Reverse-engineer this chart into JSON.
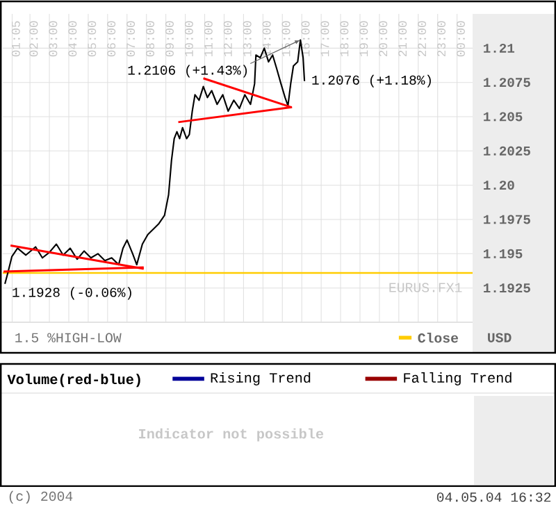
{
  "chart_data": [
    {
      "type": "line",
      "ylabel": "USD",
      "xlim": [
        0.6,
        24.8
      ],
      "ylim": [
        1.19,
        1.2125
      ],
      "xticks": [
        {
          "value": 1.083,
          "label": "01:05"
        },
        {
          "value": 2,
          "label": "02:00"
        },
        {
          "value": 3,
          "label": "03:00"
        },
        {
          "value": 4,
          "label": "04:00"
        },
        {
          "value": 5,
          "label": "05:00"
        },
        {
          "value": 6,
          "label": "06:00"
        },
        {
          "value": 7,
          "label": "07:00"
        },
        {
          "value": 8,
          "label": "08:00"
        },
        {
          "value": 9,
          "label": "09:00"
        },
        {
          "value": 10,
          "label": "10:00"
        },
        {
          "value": 11,
          "label": "11:00"
        },
        {
          "value": 12,
          "label": "12:00"
        },
        {
          "value": 13,
          "label": "13:00"
        },
        {
          "value": 14,
          "label": "14:00"
        },
        {
          "value": 15,
          "label": "15:00"
        },
        {
          "value": 16,
          "label": "16:00"
        },
        {
          "value": 17,
          "label": "17:00"
        },
        {
          "value": 18,
          "label": "18:00"
        },
        {
          "value": 19,
          "label": "19:00"
        },
        {
          "value": 20,
          "label": "20:00"
        },
        {
          "value": 21,
          "label": "21:00"
        },
        {
          "value": 22,
          "label": "22:00"
        },
        {
          "value": 23,
          "label": "23:00"
        },
        {
          "value": 24,
          "label": "00:00"
        }
      ],
      "yticks": [
        1.21,
        1.2075,
        1.205,
        1.2025,
        {
          "value": 1.2,
          "label": "1.20"
        },
        1.1975,
        1.195,
        1.1925
      ],
      "grid": true,
      "series": [
        {
          "color": "#000000",
          "x": [
            0.71,
            0.86,
            1.07,
            1.36,
            1.79,
            2.29,
            2.64,
            3.0,
            3.36,
            3.71,
            4.07,
            4.43,
            4.79,
            5.14,
            5.5,
            5.86,
            6.21,
            6.57,
            6.79,
            7.0,
            7.29,
            7.5,
            7.79,
            8.07,
            8.36,
            8.64,
            8.93,
            9.14,
            9.29,
            9.43,
            9.57,
            9.71,
            9.86,
            10.07,
            10.21,
            10.36,
            10.5,
            10.71,
            10.93,
            11.14,
            11.36,
            11.64,
            11.93,
            12.21,
            12.5,
            12.79,
            13.07,
            13.36,
            13.57,
            13.64,
            13.86,
            14.07,
            14.29,
            14.5,
            14.71,
            14.93,
            15.14,
            15.29,
            15.43,
            15.57,
            15.79,
            15.93,
            16.07,
            16.14
          ],
          "values": [
            1.1928,
            1.1936,
            1.1948,
            1.1954,
            1.1949,
            1.1955,
            1.1947,
            1.1951,
            1.1957,
            1.1949,
            1.1954,
            1.1946,
            1.1952,
            1.1947,
            1.195,
            1.1945,
            1.1947,
            1.1942,
            1.1954,
            1.196,
            1.195,
            1.1942,
            1.1957,
            1.1964,
            1.1968,
            1.1972,
            1.1978,
            1.1993,
            1.2018,
            1.2034,
            1.2039,
            1.2034,
            1.2042,
            1.2034,
            1.2037,
            1.2054,
            1.2066,
            1.2062,
            1.2072,
            1.2064,
            1.2069,
            1.2059,
            1.2066,
            1.2054,
            1.2062,
            1.2056,
            1.2066,
            1.2059,
            1.2074,
            1.2095,
            1.2093,
            1.21,
            1.209,
            1.2095,
            1.2085,
            1.2074,
            1.2064,
            1.2058,
            1.2074,
            1.2087,
            1.209,
            1.2106,
            1.2093,
            1.2076
          ]
        },
        {
          "color": "#ff0000",
          "x": [
            1.0,
            7.86
          ],
          "values": [
            1.1956,
            1.1939
          ]
        },
        {
          "color": "#ff0000",
          "x": [
            0.64,
            7.86
          ],
          "values": [
            1.1937,
            1.194
          ]
        },
        {
          "color": "#ff0000",
          "x": [
            10.93,
            15.43
          ],
          "values": [
            1.2078,
            1.2057
          ]
        },
        {
          "color": "#ff0000",
          "x": [
            9.64,
            15.5
          ],
          "values": [
            1.2046,
            1.2057
          ]
        }
      ],
      "ref_lines": [
        {
          "axis": "y",
          "value": 1.1936,
          "label": "Close",
          "color": "#ffcc00"
        }
      ],
      "annotations": [
        {
          "text": "1.2106 (+1.43%)",
          "x": 15.93,
          "y": 1.2106
        },
        {
          "text": "1.2076 (+1.18%)",
          "x": 16.14,
          "y": 1.2076
        },
        {
          "text": "1.1928 (-0.06%)",
          "x": 0.71,
          "y": 1.1928
        },
        "EURUS.FX1",
        "1.5 %HIGH-LOW"
      ]
    },
    {
      "type": "other",
      "title": "Volume(red-blue)",
      "legend": "top",
      "series": [
        {
          "name": "Rising Trend",
          "color": "#000099"
        },
        {
          "name": "Falling Trend",
          "color": "#990000"
        }
      ],
      "annotations": [
        "Indicator not possible",
        "(c) 2004",
        "04.05.04 16:32"
      ]
    }
  ]
}
